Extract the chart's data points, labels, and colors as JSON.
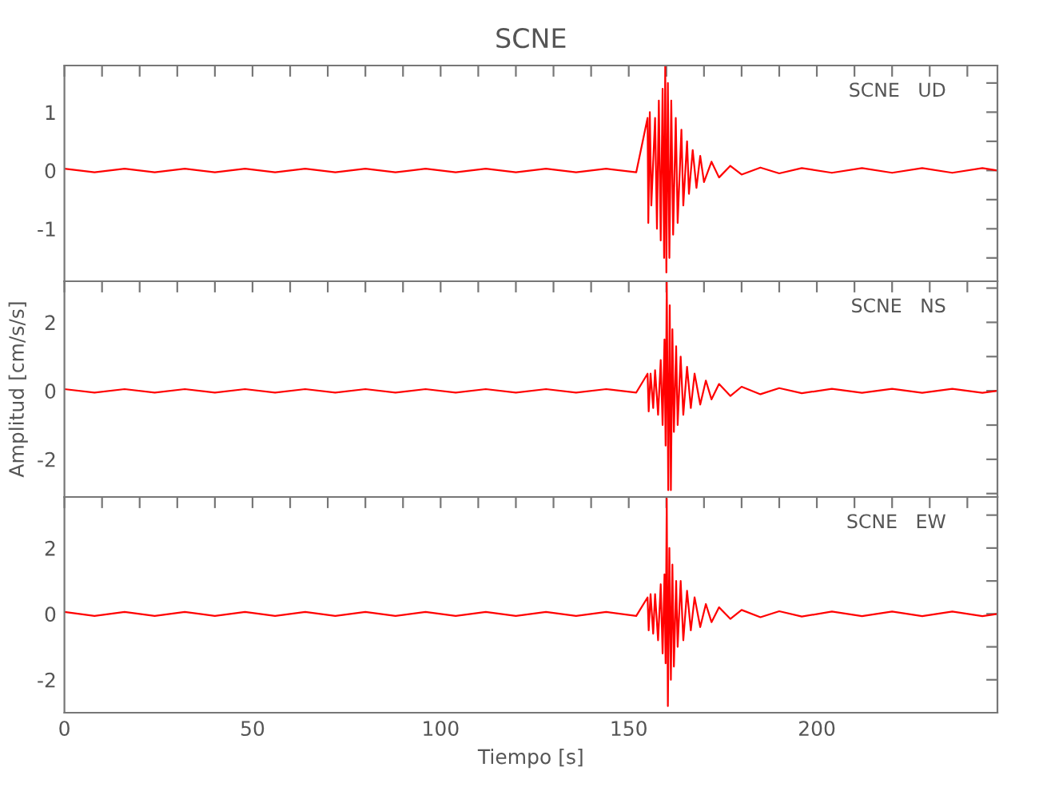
{
  "chart_data": [
    {
      "type": "line",
      "title": "SCNE",
      "annotations": [
        "SCNE   UD"
      ],
      "tick_labels": "y",
      "xlim": [
        0,
        248
      ],
      "ylim": [
        -1.9,
        1.8
      ],
      "xticks": [
        {
          "value": 0,
          "label": null
        },
        {
          "value": 10,
          "label": null
        },
        {
          "value": 20,
          "label": null
        },
        {
          "value": 30,
          "label": null
        },
        {
          "value": 40,
          "label": null
        },
        {
          "value": 50,
          "label": null
        },
        {
          "value": 60,
          "label": null
        },
        {
          "value": 70,
          "label": null
        },
        {
          "value": 80,
          "label": null
        },
        {
          "value": 90,
          "label": null
        },
        {
          "value": 100,
          "label": null
        },
        {
          "value": 110,
          "label": null
        },
        {
          "value": 120,
          "label": null
        },
        {
          "value": 130,
          "label": null
        },
        {
          "value": 140,
          "label": null
        },
        {
          "value": 150,
          "label": null
        },
        {
          "value": 160,
          "label": null
        },
        {
          "value": 170,
          "label": null
        },
        {
          "value": 180,
          "label": null
        },
        {
          "value": 190,
          "label": null
        },
        {
          "value": 200,
          "label": null
        },
        {
          "value": 210,
          "label": null
        },
        {
          "value": 220,
          "label": null
        },
        {
          "value": 230,
          "label": null
        },
        {
          "value": 240,
          "label": null
        }
      ],
      "yticks": [
        {
          "value": -1.5,
          "label": null
        },
        -1,
        {
          "value": -0.5,
          "label": null
        },
        0,
        {
          "value": 0.5,
          "label": null
        },
        1,
        {
          "value": 1.5,
          "label": null
        }
      ],
      "series": [
        {
          "color": "#ff0000",
          "x": [
            0,
            8,
            16,
            24,
            32,
            40,
            48,
            56,
            64,
            72,
            80,
            88,
            96,
            104,
            112,
            120,
            128,
            136,
            144,
            152,
            155,
            155.2,
            155.6,
            156,
            157,
            157.5,
            158,
            158.5,
            159,
            159.4,
            159.7,
            160,
            160.4,
            160.8,
            161.3,
            161.8,
            162.5,
            163,
            164,
            164.5,
            165.5,
            166,
            167,
            168,
            169,
            170,
            172,
            174,
            177,
            180,
            185,
            190,
            196,
            204,
            212,
            220,
            228,
            236,
            244,
            248
          ],
          "values": [
            0.03,
            -0.03,
            0.03,
            -0.03,
            0.03,
            -0.03,
            0.03,
            -0.03,
            0.03,
            -0.03,
            0.03,
            -0.03,
            0.03,
            -0.03,
            0.03,
            -0.03,
            0.03,
            -0.03,
            0.03,
            -0.03,
            0.9,
            -0.9,
            1.0,
            -0.6,
            0.9,
            -1.0,
            1.2,
            -1.2,
            1.4,
            -1.5,
            1.8,
            -1.75,
            1.5,
            -1.5,
            1.2,
            -1.1,
            0.9,
            -0.9,
            0.7,
            -0.6,
            0.5,
            -0.4,
            0.35,
            -0.3,
            0.25,
            -0.2,
            0.15,
            -0.12,
            0.08,
            -0.07,
            0.05,
            -0.05,
            0.04,
            -0.04,
            0.04,
            -0.04,
            0.04,
            -0.04,
            0.04,
            0
          ]
        }
      ]
    },
    {
      "type": "line",
      "ylabel": "Amplitud [cm/s/s]",
      "annotations": [
        "SCNE   NS"
      ],
      "tick_labels": "y",
      "xlim": [
        0,
        248
      ],
      "ylim": [
        -3.1,
        3.2
      ],
      "xticks": [
        {
          "value": 0,
          "label": null
        },
        {
          "value": 10,
          "label": null
        },
        {
          "value": 20,
          "label": null
        },
        {
          "value": 30,
          "label": null
        },
        {
          "value": 40,
          "label": null
        },
        {
          "value": 50,
          "label": null
        },
        {
          "value": 60,
          "label": null
        },
        {
          "value": 70,
          "label": null
        },
        {
          "value": 80,
          "label": null
        },
        {
          "value": 90,
          "label": null
        },
        {
          "value": 100,
          "label": null
        },
        {
          "value": 110,
          "label": null
        },
        {
          "value": 120,
          "label": null
        },
        {
          "value": 130,
          "label": null
        },
        {
          "value": 140,
          "label": null
        },
        {
          "value": 150,
          "label": null
        },
        {
          "value": 160,
          "label": null
        },
        {
          "value": 170,
          "label": null
        },
        {
          "value": 180,
          "label": null
        },
        {
          "value": 190,
          "label": null
        },
        {
          "value": 200,
          "label": null
        },
        {
          "value": 210,
          "label": null
        },
        {
          "value": 220,
          "label": null
        },
        {
          "value": 230,
          "label": null
        },
        {
          "value": 240,
          "label": null
        }
      ],
      "yticks": [
        {
          "value": -3,
          "label": null
        },
        -2,
        {
          "value": -1,
          "label": null
        },
        0,
        {
          "value": 1,
          "label": null
        },
        2,
        {
          "value": 3,
          "label": null
        }
      ],
      "series": [
        {
          "color": "#ff0000",
          "x": [
            0,
            8,
            16,
            24,
            32,
            40,
            48,
            56,
            64,
            72,
            80,
            88,
            96,
            104,
            112,
            120,
            128,
            136,
            144,
            152,
            155,
            155.3,
            155.8,
            156.5,
            157,
            157.8,
            158.5,
            159,
            159.5,
            159.8,
            160.1,
            160.5,
            160.9,
            161.2,
            161.6,
            162,
            162.6,
            163,
            163.8,
            164.5,
            165.5,
            166.5,
            167.5,
            169,
            170.5,
            172,
            174,
            177,
            180,
            185,
            190,
            196,
            204,
            212,
            220,
            228,
            236,
            244,
            248
          ],
          "values": [
            0.05,
            -0.05,
            0.05,
            -0.05,
            0.05,
            -0.05,
            0.05,
            -0.05,
            0.05,
            -0.05,
            0.05,
            -0.05,
            0.05,
            -0.05,
            0.05,
            -0.05,
            0.05,
            -0.05,
            0.05,
            -0.05,
            0.5,
            -0.6,
            0.5,
            -0.5,
            0.6,
            -0.7,
            0.9,
            -1.0,
            1.5,
            -1.6,
            3.2,
            -2.9,
            2.5,
            -2.9,
            1.8,
            -1.2,
            1.3,
            -1.0,
            1.0,
            -0.7,
            0.7,
            -0.5,
            0.5,
            -0.4,
            0.3,
            -0.25,
            0.2,
            -0.15,
            0.12,
            -0.1,
            0.08,
            -0.07,
            0.06,
            -0.06,
            0.06,
            -0.06,
            0.06,
            -0.06,
            0
          ]
        }
      ]
    },
    {
      "type": "line",
      "xlabel": "Tiempo [s]",
      "annotations": [
        "SCNE   EW"
      ],
      "xlim": [
        0,
        248
      ],
      "ylim": [
        -3,
        3.55
      ],
      "xticks": [
        0,
        {
          "value": 10,
          "label": null
        },
        {
          "value": 20,
          "label": null
        },
        {
          "value": 30,
          "label": null
        },
        {
          "value": 40,
          "label": null
        },
        50,
        {
          "value": 60,
          "label": null
        },
        {
          "value": 70,
          "label": null
        },
        {
          "value": 80,
          "label": null
        },
        {
          "value": 90,
          "label": null
        },
        100,
        {
          "value": 110,
          "label": null
        },
        {
          "value": 120,
          "label": null
        },
        {
          "value": 130,
          "label": null
        },
        {
          "value": 140,
          "label": null
        },
        150,
        {
          "value": 160,
          "label": null
        },
        {
          "value": 170,
          "label": null
        },
        {
          "value": 180,
          "label": null
        },
        {
          "value": 190,
          "label": null
        },
        200,
        {
          "value": 210,
          "label": null
        },
        {
          "value": 220,
          "label": null
        },
        {
          "value": 230,
          "label": null
        },
        {
          "value": 240,
          "label": null
        }
      ],
      "yticks": [
        -2,
        {
          "value": -1,
          "label": null
        },
        0,
        {
          "value": 1,
          "label": null
        },
        2,
        {
          "value": 3,
          "label": null
        }
      ],
      "series": [
        {
          "color": "#ff0000",
          "x": [
            0,
            8,
            16,
            24,
            32,
            40,
            48,
            56,
            64,
            72,
            80,
            88,
            96,
            104,
            112,
            120,
            128,
            136,
            144,
            152,
            155,
            155.3,
            155.8,
            156.5,
            157,
            157.8,
            158.5,
            159,
            159.5,
            159.8,
            160.1,
            160.4,
            160.8,
            161.2,
            161.6,
            162,
            162.6,
            163,
            163.8,
            164.5,
            165.5,
            166.5,
            167.5,
            169,
            170.5,
            172,
            174,
            177,
            180,
            185,
            190,
            196,
            204,
            212,
            220,
            228,
            236,
            244,
            248
          ],
          "values": [
            0.06,
            -0.06,
            0.06,
            -0.06,
            0.06,
            -0.06,
            0.06,
            -0.06,
            0.06,
            -0.06,
            0.06,
            -0.06,
            0.06,
            -0.06,
            0.06,
            -0.06,
            0.06,
            -0.06,
            0.06,
            -0.06,
            0.5,
            -0.5,
            0.6,
            -0.6,
            0.6,
            -0.8,
            0.9,
            -1.2,
            1.2,
            -1.5,
            3.5,
            -2.8,
            2.0,
            -2.0,
            1.5,
            -1.6,
            1.0,
            -1.0,
            1.0,
            -0.8,
            0.7,
            -0.5,
            0.5,
            -0.4,
            0.3,
            -0.25,
            0.2,
            -0.15,
            0.12,
            -0.1,
            0.08,
            -0.08,
            0.07,
            -0.07,
            0.07,
            -0.07,
            0.07,
            -0.07,
            0
          ]
        }
      ]
    }
  ]
}
